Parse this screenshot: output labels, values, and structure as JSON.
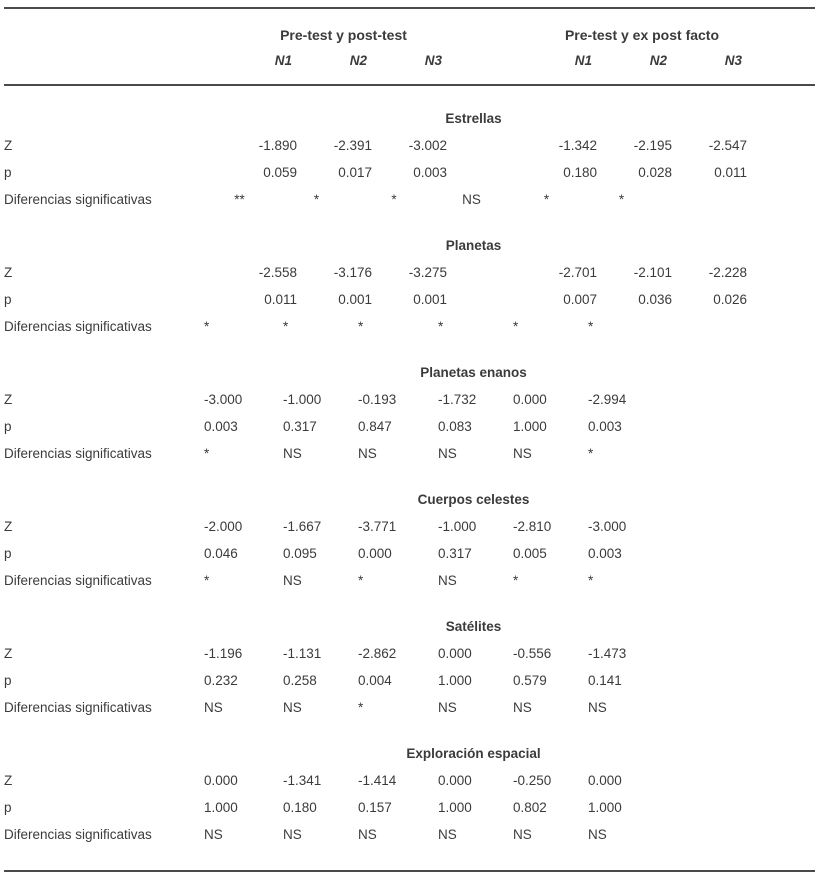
{
  "header": {
    "groups": [
      {
        "label": "Pre-test y post-test",
        "cols": [
          "N1",
          "N2",
          "N3"
        ]
      },
      {
        "label": "Pre-test y ex post facto",
        "cols": [
          "N1",
          "N2",
          "N3"
        ]
      }
    ]
  },
  "row_labels": {
    "z": "Z",
    "p": "p",
    "sig": "Diferencias significativas"
  },
  "sections": [
    {
      "title": "Estrellas",
      "align": "right",
      "sig_align": "center",
      "z": [
        "-1.890",
        "-2.391",
        "-3.002",
        "-1.342",
        "-2.195",
        "-2.547"
      ],
      "p": [
        "0.059",
        "0.017",
        "0.003",
        "0.180",
        "0.028",
        "0.011"
      ],
      "sig": [
        "**",
        "*",
        "*",
        "NS",
        "*",
        "*"
      ]
    },
    {
      "title": "Planetas",
      "align": "right",
      "sig_align": "left",
      "z": [
        "-2.558",
        "-3.176",
        "-3.275",
        "-2.701",
        "-2.101",
        "-2.228"
      ],
      "p": [
        "0.011",
        "0.001",
        "0.001",
        "0.007",
        "0.036",
        "0.026"
      ],
      "sig": [
        "*",
        "*",
        "*",
        "*",
        "*",
        "*"
      ]
    },
    {
      "title": "Planetas enanos",
      "align": "left",
      "sig_align": "left",
      "z": [
        "-3.000",
        "-1.000",
        "-0.193",
        "-1.732",
        "0.000",
        "-2.994"
      ],
      "p": [
        "0.003",
        "0.317",
        "0.847",
        "0.083",
        "1.000",
        "0.003"
      ],
      "sig": [
        "*",
        "NS",
        "NS",
        "NS",
        "NS",
        "*"
      ]
    },
    {
      "title": "Cuerpos celestes",
      "align": "left",
      "sig_align": "left",
      "z": [
        "-2.000",
        "-1.667",
        "-3.771",
        "-1.000",
        "-2.810",
        "-3.000"
      ],
      "p": [
        "0.046",
        "0.095",
        "0.000",
        "0.317",
        "0.005",
        "0.003"
      ],
      "sig": [
        "*",
        "NS",
        "*",
        "NS",
        "*",
        "*"
      ]
    },
    {
      "title": "Satélites",
      "align": "left",
      "sig_align": "left",
      "z": [
        "-1.196",
        "-1.131",
        "-2.862",
        "0.000",
        "-0.556",
        "-1.473"
      ],
      "p": [
        "0.232",
        "0.258",
        "0.004",
        "1.000",
        "0.579",
        "0.141"
      ],
      "sig": [
        "NS",
        "NS",
        "*",
        "NS",
        "NS",
        "NS"
      ]
    },
    {
      "title": "Exploración espacial",
      "align": "left",
      "sig_align": "left",
      "z": [
        "0.000",
        "-1.341",
        "-1.414",
        "0.000",
        "-0.250",
        "0.000"
      ],
      "p": [
        "1.000",
        "0.180",
        "0.157",
        "1.000",
        "0.802",
        "1.000"
      ],
      "sig": [
        "NS",
        "NS",
        "NS",
        "NS",
        "NS",
        "NS"
      ]
    }
  ],
  "colors": {
    "text": "#3b3b3b",
    "rule": "#4a4a4a",
    "background": "#ffffff"
  }
}
